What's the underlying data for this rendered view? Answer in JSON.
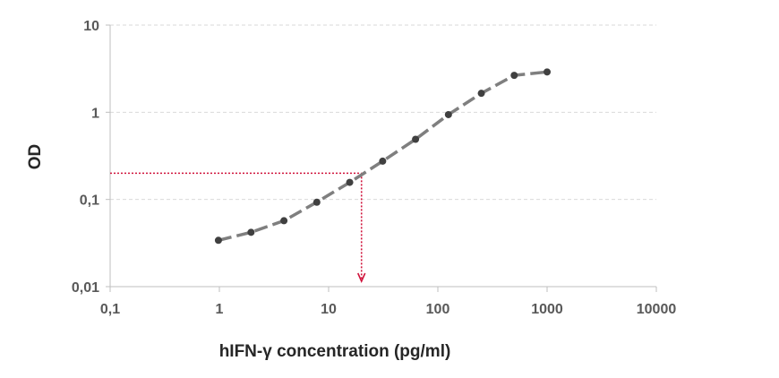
{
  "chart_data": {
    "type": "line",
    "xscale": "log",
    "yscale": "log",
    "xlabel": "hIFN-γ concentration (pg/ml)",
    "ylabel": "OD",
    "xlim": [
      0.1,
      10000
    ],
    "ylim": [
      0.01,
      10
    ],
    "x_ticks": [
      0.1,
      1,
      10,
      100,
      1000,
      10000
    ],
    "x_tick_labels": [
      "0,1",
      "1",
      "10",
      "100",
      "1000",
      "10000"
    ],
    "y_ticks": [
      0.01,
      0.1,
      1,
      10
    ],
    "y_tick_labels": [
      "0,01",
      "0,1",
      "1",
      "10"
    ],
    "grid": "horizontal dashed",
    "series": [
      {
        "line_style": "dashed",
        "color": "#7f7f7f",
        "marker_color": "#404040",
        "x": [
          0.98,
          1.95,
          3.9,
          7.8,
          15.6,
          31.25,
          62.5,
          125,
          250,
          500,
          1000
        ],
        "y": [
          0.034,
          0.042,
          0.057,
          0.093,
          0.157,
          0.275,
          0.49,
          0.94,
          1.65,
          2.65,
          2.9
        ]
      }
    ],
    "annotation": {
      "style": "dotted arrow",
      "color": "#d0143c",
      "y_level": 0.2,
      "x_value": 20
    }
  }
}
